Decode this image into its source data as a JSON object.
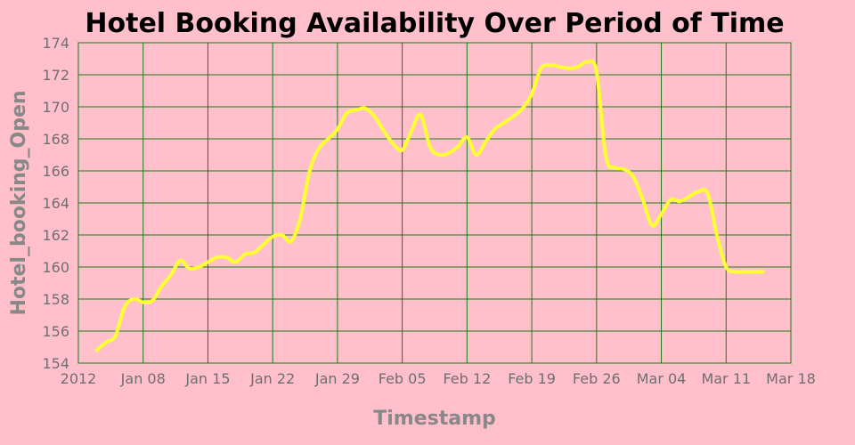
{
  "chart_data": {
    "type": "line",
    "title": "Hotel Booking Availability Over Period of Time",
    "xlabel": "Timestamp",
    "ylabel": "Hotel_booking_Open",
    "ylim": [
      154,
      174
    ],
    "xlim": [
      "2012-01-01",
      "2012-03-18"
    ],
    "x_tick_labels": [
      "2012",
      "Jan 08",
      "Jan 15",
      "Jan 22",
      "Jan 29",
      "Feb 05",
      "Feb 12",
      "Feb 19",
      "Feb 26",
      "Mar 04",
      "Mar 11",
      "Mar 18"
    ],
    "y_ticks": [
      154,
      156,
      158,
      160,
      162,
      164,
      166,
      168,
      170,
      172,
      174
    ],
    "grid": true,
    "line_color": "#ffff33",
    "grid_color": "#1a7a1a",
    "background_color": "#ffc0cb",
    "series": [
      {
        "x": [
          "2012-01-03",
          "2012-01-04",
          "2012-01-05",
          "2012-01-06",
          "2012-01-07",
          "2012-01-08",
          "2012-01-09",
          "2012-01-10",
          "2012-01-11",
          "2012-01-12",
          "2012-01-13",
          "2012-01-14",
          "2012-01-15",
          "2012-01-16",
          "2012-01-17",
          "2012-01-18",
          "2012-01-19",
          "2012-01-20",
          "2012-01-21",
          "2012-01-22",
          "2012-01-23",
          "2012-01-24",
          "2012-01-25",
          "2012-01-26",
          "2012-01-27",
          "2012-01-28",
          "2012-01-29",
          "2012-01-30",
          "2012-01-31",
          "2012-02-01",
          "2012-02-02",
          "2012-02-03",
          "2012-02-04",
          "2012-02-05",
          "2012-02-06",
          "2012-02-07",
          "2012-02-08",
          "2012-02-09",
          "2012-02-10",
          "2012-02-11",
          "2012-02-12",
          "2012-02-13",
          "2012-02-14",
          "2012-02-15",
          "2012-02-16",
          "2012-02-17",
          "2012-02-18",
          "2012-02-19",
          "2012-02-20",
          "2012-02-21",
          "2012-02-22",
          "2012-02-23",
          "2012-02-24",
          "2012-02-25",
          "2012-02-26",
          "2012-02-27",
          "2012-02-28",
          "2012-02-29",
          "2012-03-01",
          "2012-03-02",
          "2012-03-03",
          "2012-03-04",
          "2012-03-05",
          "2012-03-06",
          "2012-03-07",
          "2012-03-08",
          "2012-03-09",
          "2012-03-10",
          "2012-03-11",
          "2012-03-12",
          "2012-03-13",
          "2012-03-14",
          "2012-03-15"
        ],
        "values": [
          154.8,
          155.3,
          155.7,
          157.5,
          158.0,
          157.8,
          157.9,
          158.8,
          159.5,
          160.4,
          159.9,
          160.0,
          160.3,
          160.6,
          160.6,
          160.3,
          160.8,
          160.9,
          161.4,
          161.9,
          162.0,
          161.6,
          163.1,
          166.0,
          167.4,
          168.0,
          168.6,
          169.6,
          169.8,
          169.9,
          169.4,
          168.5,
          167.7,
          167.3,
          168.5,
          169.5,
          167.5,
          167.0,
          167.1,
          167.5,
          168.1,
          167.0,
          167.8,
          168.6,
          169.0,
          169.4,
          169.9,
          170.8,
          172.4,
          172.6,
          172.5,
          172.4,
          172.5,
          172.8,
          172.2,
          166.9,
          166.2,
          166.1,
          165.6,
          164.2,
          162.6,
          163.3,
          164.2,
          164.1,
          164.4,
          164.7,
          164.6,
          162.0,
          160.0,
          159.7,
          159.7,
          159.7,
          159.7
        ]
      }
    ]
  }
}
